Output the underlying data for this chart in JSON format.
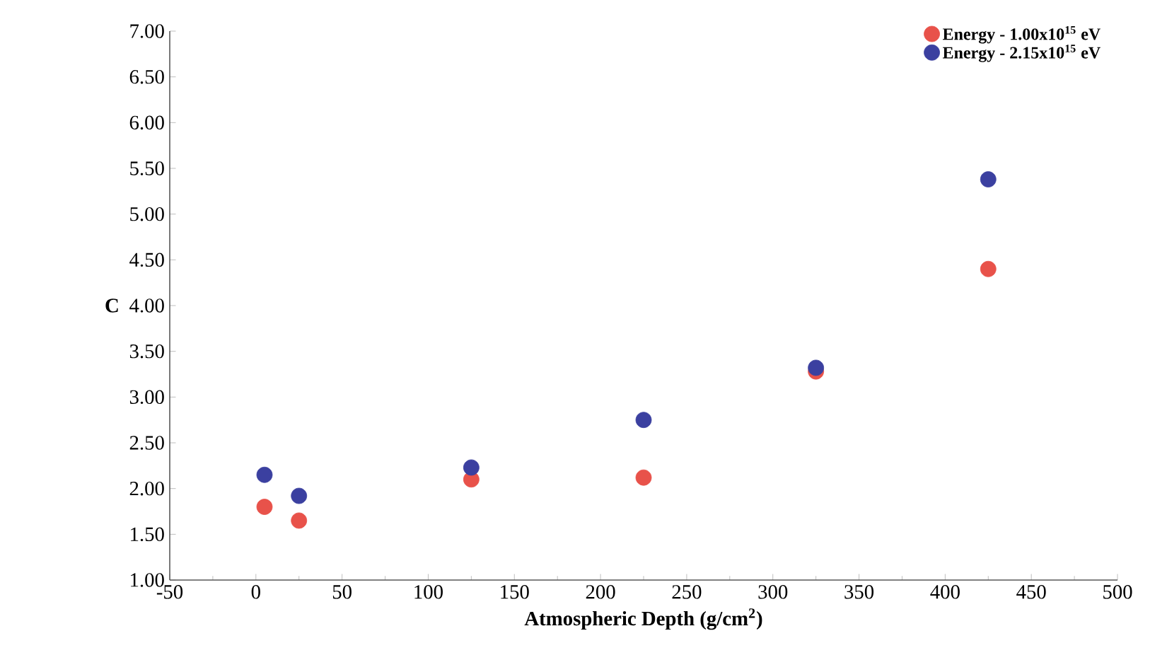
{
  "chart_data": {
    "type": "scatter",
    "xlabel": "Atmospheric Depth (g/cm$^{2}$)",
    "ylabel": "C",
    "legend": "top right",
    "xlim": [
      -50,
      500
    ],
    "xticks": [
      -50,
      0,
      50,
      100,
      150,
      200,
      250,
      300,
      350,
      400,
      450,
      500
    ],
    "ylim": [
      1.0,
      7.0
    ],
    "yticks": [
      {
        "value": 1.0,
        "label": "1.00"
      },
      {
        "value": 1.5,
        "label": "1.50"
      },
      {
        "value": 2.0,
        "label": "2.00"
      },
      {
        "value": 2.5,
        "label": "2.50"
      },
      {
        "value": 3.0,
        "label": "3.00"
      },
      {
        "value": 3.5,
        "label": "3.50"
      },
      {
        "value": 4.0,
        "label": "4.00"
      },
      {
        "value": 4.5,
        "label": "4.50"
      },
      {
        "value": 5.0,
        "label": "5.00"
      },
      {
        "value": 5.5,
        "label": "5.50"
      },
      {
        "value": 6.0,
        "label": "6.00"
      },
      {
        "value": 6.5,
        "label": "6.50"
      },
      {
        "value": 7.0,
        "label": "7.00"
      }
    ],
    "series": [
      {
        "name": "Energy - 1.00x10$^{15}$ eV",
        "color": "#e8524a",
        "x": [
          5,
          25,
          125,
          225,
          325,
          425
        ],
        "values": [
          1.8,
          1.65,
          2.1,
          2.12,
          3.28,
          4.4
        ]
      },
      {
        "name": "Energy - 2.15x10$^{15}$ eV",
        "color": "#3b40a0",
        "x": [
          5,
          25,
          125,
          225,
          325,
          425
        ],
        "values": [
          2.15,
          1.92,
          2.23,
          2.75,
          3.32,
          5.38
        ]
      }
    ]
  }
}
